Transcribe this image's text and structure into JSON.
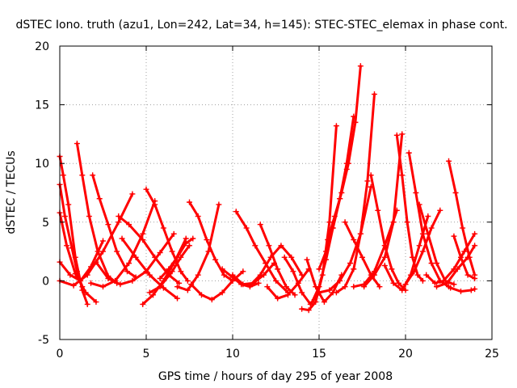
{
  "chart_data": {
    "type": "scatter",
    "title": "dSTEC Iono. truth (azu1, Lon=242, Lat=34, h=145): STEC-STEC_elemax in phase cont.",
    "xlabel": "GPS time / hours of day 295 of year 2008",
    "ylabel": "dSTEC  / TECUs",
    "xlim": [
      0,
      25
    ],
    "ylim": [
      -5,
      20
    ],
    "xticks": [
      "0",
      "5",
      "10",
      "15",
      "20",
      "25"
    ],
    "yticks": [
      "-5",
      "0",
      "5",
      "10",
      "15",
      "20"
    ],
    "grid": true,
    "marker": "plus",
    "color": "#ff0000",
    "series": [
      {
        "x": [
          0.0,
          0.2,
          0.5,
          0.9,
          1.3,
          1.6
        ],
        "y": [
          10.6,
          9.0,
          6.5,
          2.0,
          -0.8,
          -2.0
        ]
      },
      {
        "x": [
          0.0,
          0.3,
          0.7,
          1.0,
          1.3
        ],
        "y": [
          8.2,
          5.5,
          2.8,
          0.8,
          -0.5
        ]
      },
      {
        "x": [
          0.0,
          0.4,
          0.9,
          1.5,
          2.1
        ],
        "y": [
          5.8,
          3.0,
          0.6,
          -1.0,
          -1.8
        ]
      },
      {
        "x": [
          1.0,
          1.3,
          1.7,
          2.2,
          2.8,
          3.3
        ],
        "y": [
          11.7,
          9.0,
          5.5,
          2.5,
          0.4,
          -0.2
        ]
      },
      {
        "x": [
          1.9,
          2.3,
          2.8,
          3.3,
          3.9,
          4.4
        ],
        "y": [
          9.0,
          7.0,
          4.8,
          2.5,
          0.8,
          0.3
        ]
      },
      {
        "x": [
          0.0,
          0.6,
          1.2,
          1.8,
          2.5
        ],
        "y": [
          1.6,
          0.5,
          0.0,
          1.2,
          3.4
        ]
      },
      {
        "x": [
          0.0,
          0.8,
          1.6,
          2.5,
          3.4,
          4.2
        ],
        "y": [
          0.0,
          -0.4,
          0.5,
          2.5,
          5.0,
          7.4
        ]
      },
      {
        "x": [
          1.8,
          2.5,
          3.2,
          4.0,
          4.8,
          5.5
        ],
        "y": [
          -0.2,
          -0.5,
          0.0,
          1.5,
          4.0,
          6.8
        ]
      },
      {
        "x": [
          2.1,
          2.8,
          3.5,
          4.2,
          5.0,
          5.8,
          6.6
        ],
        "y": [
          1.6,
          0.2,
          -0.3,
          0.0,
          0.8,
          2.4,
          4.0
        ]
      },
      {
        "x": [
          3.4,
          4.0,
          4.8,
          5.5,
          6.3,
          6.9
        ],
        "y": [
          5.5,
          4.8,
          3.5,
          2.0,
          0.5,
          -0.2
        ]
      },
      {
        "x": [
          3.6,
          4.4,
          5.2,
          6.0,
          6.8
        ],
        "y": [
          3.6,
          2.0,
          0.5,
          -0.6,
          -1.5
        ]
      },
      {
        "x": [
          5.0,
          5.5,
          6.0,
          6.5,
          7.0,
          7.4
        ],
        "y": [
          7.8,
          6.5,
          4.5,
          2.5,
          0.8,
          0.0
        ]
      },
      {
        "x": [
          4.8,
          5.4,
          6.0,
          6.6,
          7.3
        ],
        "y": [
          -2.0,
          -1.2,
          0.0,
          1.5,
          3.6
        ]
      },
      {
        "x": [
          5.2,
          5.8,
          6.5,
          7.0,
          7.5
        ],
        "y": [
          -1.0,
          -0.5,
          0.8,
          2.0,
          3.0
        ]
      },
      {
        "x": [
          5.8,
          6.3,
          6.8,
          7.3,
          7.7
        ],
        "y": [
          0.2,
          1.0,
          2.0,
          3.2,
          3.6
        ]
      },
      {
        "x": [
          7.5,
          8.0,
          8.5,
          9.0,
          9.5,
          10.0
        ],
        "y": [
          6.7,
          5.5,
          3.5,
          1.8,
          0.5,
          0.0
        ]
      },
      {
        "x": [
          6.8,
          7.4,
          8.0,
          8.6,
          9.2
        ],
        "y": [
          -0.5,
          -0.8,
          0.5,
          2.5,
          6.5
        ]
      },
      {
        "x": [
          7.6,
          8.2,
          8.8,
          9.4,
          10.0,
          10.6
        ],
        "y": [
          -0.3,
          -1.2,
          -1.6,
          -1.0,
          0.0,
          0.8
        ]
      },
      {
        "x": [
          9.4,
          10.0,
          10.5,
          11.0,
          11.5
        ],
        "y": [
          1.0,
          0.3,
          -0.3,
          -0.5,
          -0.2
        ]
      },
      {
        "x": [
          10.2,
          10.8,
          11.3,
          11.9,
          12.5,
          13.2
        ],
        "y": [
          5.9,
          4.5,
          3.0,
          1.5,
          0.0,
          -1.0
        ]
      },
      {
        "x": [
          10.0,
          10.6,
          11.2,
          11.8,
          12.4
        ],
        "y": [
          0.5,
          -0.3,
          -0.2,
          0.5,
          1.5
        ]
      },
      {
        "x": [
          11.6,
          12.1,
          12.6,
          13.1,
          13.6
        ],
        "y": [
          4.8,
          3.0,
          1.0,
          -0.5,
          -1.2
        ]
      },
      {
        "x": [
          11.0,
          11.6,
          12.2,
          12.8,
          13.4,
          14.0
        ],
        "y": [
          -0.4,
          0.5,
          2.0,
          3.0,
          2.0,
          0.5
        ]
      },
      {
        "x": [
          12.0,
          12.6,
          13.2,
          13.8,
          14.4
        ],
        "y": [
          -0.5,
          -1.5,
          -1.2,
          -0.2,
          1.0
        ]
      },
      {
        "x": [
          13.0,
          13.5,
          14.0,
          14.5,
          15.0
        ],
        "y": [
          2.0,
          0.8,
          -1.0,
          -2.0,
          -1.0
        ]
      },
      {
        "x": [
          14.0,
          14.4,
          14.8,
          15.2,
          15.6,
          16.0
        ],
        "y": [
          -2.4,
          -2.5,
          -1.8,
          0.5,
          5.0,
          13.2
        ]
      },
      {
        "x": [
          14.3,
          14.8,
          15.3,
          15.8,
          16.3
        ],
        "y": [
          1.8,
          -0.5,
          -1.8,
          -1.0,
          0.5
        ]
      },
      {
        "x": [
          14.6,
          15.0,
          15.4,
          15.8,
          16.2,
          16.6
        ],
        "y": [
          -1.8,
          -0.5,
          1.8,
          4.5,
          7.0,
          9.5
        ]
      },
      {
        "x": [
          15.0,
          15.4,
          15.8,
          16.2,
          16.6,
          17.0
        ],
        "y": [
          1.0,
          2.5,
          4.5,
          7.0,
          10.0,
          14.0
        ]
      },
      {
        "x": [
          15.5,
          15.9,
          16.3,
          16.7,
          17.1,
          17.4
        ],
        "y": [
          3.5,
          5.5,
          7.5,
          10.0,
          13.5,
          18.3
        ]
      },
      {
        "x": [
          15.0,
          15.6,
          16.2,
          16.8,
          17.4,
          18.0
        ],
        "y": [
          -1.0,
          -0.8,
          0.0,
          1.5,
          4.0,
          8.0
        ]
      },
      {
        "x": [
          16.0,
          16.5,
          17.0,
          17.4,
          17.8,
          18.2
        ],
        "y": [
          -1.0,
          -0.5,
          1.0,
          4.0,
          8.5,
          15.9
        ]
      },
      {
        "x": [
          16.5,
          17.0,
          17.5,
          18.0,
          18.5
        ],
        "y": [
          5.0,
          3.5,
          2.0,
          0.5,
          -0.5
        ]
      },
      {
        "x": [
          17.0,
          17.6,
          18.2,
          18.8,
          19.5
        ],
        "y": [
          -0.5,
          -0.3,
          0.8,
          3.0,
          6.0
        ]
      },
      {
        "x": [
          18.0,
          18.4,
          18.8,
          19.2,
          19.6,
          20.0
        ],
        "y": [
          9.0,
          6.0,
          3.0,
          1.0,
          -0.2,
          -0.8
        ]
      },
      {
        "x": [
          17.6,
          18.2,
          18.8,
          19.3,
          19.8
        ],
        "y": [
          -0.5,
          0.5,
          2.0,
          5.0,
          12.5
        ]
      },
      {
        "x": [
          19.5,
          19.8,
          20.1,
          20.4,
          20.7,
          21.0
        ],
        "y": [
          12.4,
          9.0,
          5.0,
          2.0,
          0.5,
          0.0
        ]
      },
      {
        "x": [
          18.8,
          19.3,
          19.8,
          20.3,
          20.8,
          21.3
        ],
        "y": [
          1.3,
          -0.2,
          -0.8,
          0.5,
          3.0,
          5.5
        ]
      },
      {
        "x": [
          20.2,
          20.6,
          21.0,
          21.5,
          22.0,
          22.5
        ],
        "y": [
          10.9,
          7.5,
          4.0,
          1.5,
          0.0,
          -0.5
        ]
      },
      {
        "x": [
          20.0,
          20.5,
          21.0,
          21.5,
          22.0
        ],
        "y": [
          -0.3,
          0.8,
          2.5,
          4.5,
          6.0
        ]
      },
      {
        "x": [
          20.8,
          21.3,
          21.8,
          22.3,
          22.8
        ],
        "y": [
          6.5,
          4.0,
          1.5,
          0.0,
          -0.3
        ]
      },
      {
        "x": [
          21.2,
          21.7,
          22.2,
          22.8,
          23.4,
          24.0
        ],
        "y": [
          0.5,
          -0.2,
          0.0,
          1.0,
          2.5,
          4.0
        ]
      },
      {
        "x": [
          22.5,
          22.9,
          23.3,
          23.7,
          24.0
        ],
        "y": [
          10.2,
          7.5,
          4.5,
          2.0,
          0.5
        ]
      },
      {
        "x": [
          21.8,
          22.4,
          23.0,
          23.6,
          24.0
        ],
        "y": [
          -0.5,
          -0.2,
          1.0,
          2.0,
          3.0
        ]
      },
      {
        "x": [
          22.8,
          23.2,
          23.6,
          24.0
        ],
        "y": [
          3.8,
          2.0,
          0.5,
          0.2
        ]
      },
      {
        "x": [
          22.0,
          22.6,
          23.2,
          23.8,
          24.0
        ],
        "y": [
          0.0,
          -0.6,
          -0.9,
          -0.8,
          -0.7
        ]
      }
    ]
  }
}
